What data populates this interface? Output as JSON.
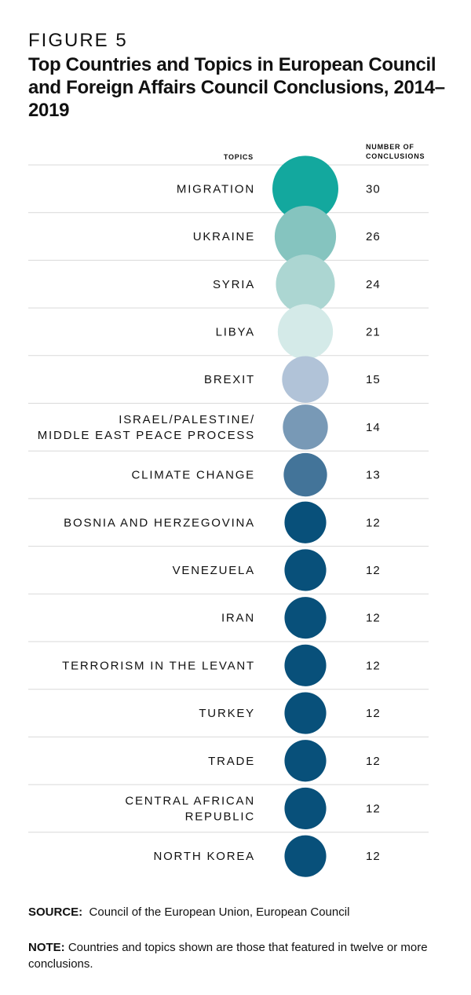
{
  "figure_label": "FIGURE 5",
  "chart_data": {
    "type": "bubble",
    "title": "Top Countries and Topics in European Council and Foreign Affairs Council Conclusions, 2014–2019",
    "column_headers": {
      "topics": "TOPICS",
      "count": "NUMBER OF CONCLUSIONS"
    },
    "categories": [
      "MIGRATION",
      "UKRAINE",
      "SYRIA",
      "LIBYA",
      "BREXIT",
      "ISRAEL/PALESTINE/\nMIDDLE EAST PEACE PROCESS",
      "CLIMATE CHANGE",
      "BOSNIA AND HERZEGOVINA",
      "VENEZUELA",
      "IRAN",
      "TERRORISM IN THE LEVANT",
      "TURKEY",
      "TRADE",
      "CENTRAL AFRICAN\nREPUBLIC",
      "NORTH KOREA"
    ],
    "values": [
      30,
      26,
      24,
      21,
      15,
      14,
      13,
      12,
      12,
      12,
      12,
      12,
      12,
      12,
      12
    ],
    "colors": [
      "#13a89e",
      "#85c4bf",
      "#acd6d2",
      "#d4eae8",
      "#b1c3d8",
      "#7899b6",
      "#437499",
      "#08507a",
      "#08507a",
      "#08507a",
      "#08507a",
      "#08507a",
      "#08507a",
      "#08507a",
      "#08507a"
    ],
    "grid_color": "#d9d9d9"
  },
  "source": {
    "label": "SOURCE:",
    "text": "Council of the European Union, European Council"
  },
  "note": {
    "label": "NOTE:",
    "text": "Countries and topics shown are those that featured in twelve or more conclusions."
  }
}
